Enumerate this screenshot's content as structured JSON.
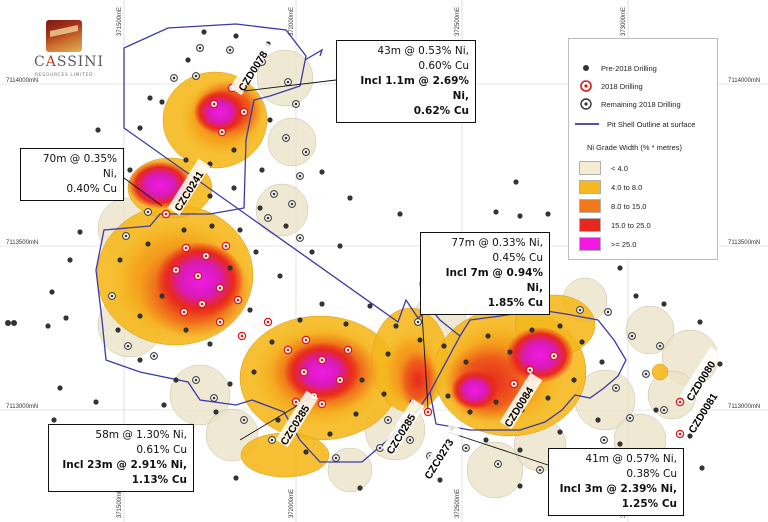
{
  "logo": {
    "name_first": "C",
    "name_accent": "A",
    "name_rest": "SSINI",
    "subtitle": "RESOURCES LIMITED"
  },
  "grid": {
    "eastings": [
      "371500mE",
      "372000mE",
      "372500mE",
      "373000mE"
    ],
    "northings": [
      "7114000mN",
      "7113500mN",
      "7113000mN"
    ]
  },
  "legend": {
    "pre2018": "Pre-2018 Drilling",
    "drill2018": "2018 Drilling",
    "remaining": "Remaining 2018 Drilling",
    "pitshell": "Pit Shell Outline at surface",
    "grade_title": "Ni Grade Width (% * metres)",
    "classes": [
      {
        "label": "< 4.0",
        "color": "#f3ecd3"
      },
      {
        "label": "4.0 to 8.0",
        "color": "#f5b81e"
      },
      {
        "label": "8.0 to 15.0",
        "color": "#f07a1a"
      },
      {
        "label": "15.0 to 25.0",
        "color": "#e8281c"
      },
      {
        "label": ">= 25.0",
        "color": "#f01ae0"
      }
    ],
    "colors": {
      "pit_shell": "#3a3aa8",
      "pre2018": "#333333",
      "drill2018": "#e01414"
    }
  },
  "holes": {
    "czd0078": "CZD0078",
    "czc0241": "CZC0241",
    "czc0285a": "CZC0285",
    "czc0285b": "CZC0285",
    "czc0273": "CZC0273",
    "czd0084": "CZD0084",
    "czd0080": "CZD0080",
    "czd0081": "CZD0081"
  },
  "callouts": {
    "c1": {
      "line1": "43m @ 0.53% Ni,",
      "line2": "0.60% Cu",
      "line3": "Incl 1.1m @ 2.69% Ni,",
      "line4": "0.62% Cu"
    },
    "c2": {
      "line1": "70m @ 0.35% Ni,",
      "line2": "0.40% Cu"
    },
    "c3": {
      "line1": "77m @ 0.33% Ni,",
      "line2": "0.45% Cu",
      "line3": "Incl 7m @ 0.94% Ni,",
      "line4": "1.85% Cu"
    },
    "c4": {
      "line1": "58m @ 1.30% Ni,",
      "line2": "0.61% Cu",
      "line3": "Incl 23m @ 2.91% Ni,",
      "line4": "1.13% Cu"
    },
    "c5": {
      "line1": "41m @ 0.57% Ni,",
      "line2": "0.38% Cu",
      "line3": "Incl 3m @ 2.39% Ni,",
      "line4": "1.25% Cu"
    }
  }
}
